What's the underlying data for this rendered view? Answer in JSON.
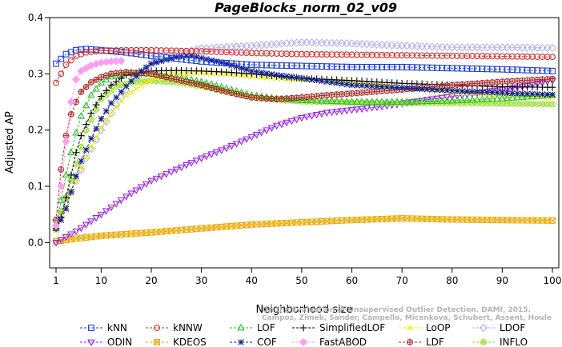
{
  "chart_data": {
    "type": "line",
    "title": "PageBlocks_norm_02_v09",
    "xlabel": "Neighborhood size",
    "ylabel": "Adjusted AP",
    "xlim": [
      1,
      100
    ],
    "ylim": [
      -0.045,
      0.4
    ],
    "xticks": [
      1,
      10,
      20,
      30,
      40,
      50,
      60,
      70,
      80,
      90,
      100
    ],
    "yticks": [
      0.0,
      0.1,
      0.2,
      0.3,
      0.4
    ],
    "xtick_labels": [
      "1",
      "10",
      "20",
      "30",
      "40",
      "50",
      "60",
      "70",
      "80",
      "90",
      "100"
    ],
    "ytick_labels": [
      "0.0",
      "0.1",
      "0.2",
      "0.3",
      "0.4"
    ],
    "grid": false,
    "legend_position": "bottom",
    "citation": [
      "Campos, Zimek, Sander, Campello, Micenkova, Schubert, Assent, Houle",
      "On the Evaluation of Unsupervised Outlier Detection. DAMI, 2015."
    ],
    "series": [
      {
        "name": "kNN",
        "color": "#1f3fd8",
        "marker": "square",
        "points": [
          [
            1,
            0.318
          ],
          [
            3,
            0.335
          ],
          [
            5,
            0.342
          ],
          [
            7,
            0.344
          ],
          [
            10,
            0.342
          ],
          [
            15,
            0.338
          ],
          [
            20,
            0.332
          ],
          [
            30,
            0.322
          ],
          [
            40,
            0.316
          ],
          [
            50,
            0.314
          ],
          [
            60,
            0.312
          ],
          [
            70,
            0.312
          ],
          [
            80,
            0.31
          ],
          [
            90,
            0.308
          ],
          [
            100,
            0.305
          ]
        ]
      },
      {
        "name": "kNNW",
        "color": "#d62a2a",
        "marker": "circle",
        "points": [
          [
            1,
            0.284
          ],
          [
            2,
            0.3
          ],
          [
            3,
            0.316
          ],
          [
            5,
            0.332
          ],
          [
            7,
            0.338
          ],
          [
            10,
            0.341
          ],
          [
            15,
            0.342
          ],
          [
            20,
            0.342
          ],
          [
            30,
            0.34
          ],
          [
            40,
            0.337
          ],
          [
            50,
            0.335
          ],
          [
            60,
            0.334
          ],
          [
            70,
            0.333
          ],
          [
            80,
            0.332
          ],
          [
            90,
            0.331
          ],
          [
            100,
            0.33
          ]
        ]
      },
      {
        "name": "LOF",
        "color": "#28c028",
        "marker": "triangle-up",
        "points": [
          [
            1,
            0.025
          ],
          [
            2,
            0.075
          ],
          [
            3,
            0.12
          ],
          [
            4,
            0.16
          ],
          [
            5,
            0.195
          ],
          [
            6,
            0.225
          ],
          [
            8,
            0.262
          ],
          [
            10,
            0.284
          ],
          [
            12,
            0.295
          ],
          [
            15,
            0.301
          ],
          [
            20,
            0.3
          ],
          [
            25,
            0.294
          ],
          [
            30,
            0.286
          ],
          [
            35,
            0.274
          ],
          [
            40,
            0.262
          ],
          [
            45,
            0.256
          ],
          [
            50,
            0.253
          ],
          [
            60,
            0.25
          ],
          [
            70,
            0.25
          ],
          [
            80,
            0.252
          ],
          [
            90,
            0.256
          ],
          [
            100,
            0.262
          ]
        ]
      },
      {
        "name": "SimplifiedLOF",
        "color": "#000000",
        "marker": "plus",
        "points": [
          [
            1,
            0.025
          ],
          [
            2,
            0.045
          ],
          [
            3,
            0.08
          ],
          [
            4,
            0.12
          ],
          [
            5,
            0.16
          ],
          [
            6,
            0.19
          ],
          [
            8,
            0.23
          ],
          [
            10,
            0.26
          ],
          [
            12,
            0.28
          ],
          [
            15,
            0.298
          ],
          [
            20,
            0.305
          ],
          [
            25,
            0.306
          ],
          [
            30,
            0.305
          ],
          [
            35,
            0.303
          ],
          [
            40,
            0.3
          ],
          [
            45,
            0.296
          ],
          [
            50,
            0.292
          ],
          [
            60,
            0.288
          ],
          [
            70,
            0.283
          ],
          [
            80,
            0.28
          ],
          [
            90,
            0.277
          ],
          [
            100,
            0.276
          ]
        ]
      },
      {
        "name": "LoOP",
        "color": "#eeee00",
        "marker": "x",
        "points": [
          [
            1,
            0.02
          ],
          [
            2,
            0.04
          ],
          [
            3,
            0.062
          ],
          [
            4,
            0.088
          ],
          [
            5,
            0.11
          ],
          [
            6,
            0.134
          ],
          [
            8,
            0.17
          ],
          [
            10,
            0.204
          ],
          [
            12,
            0.23
          ],
          [
            15,
            0.262
          ],
          [
            20,
            0.29
          ],
          [
            25,
            0.3
          ],
          [
            30,
            0.302
          ],
          [
            35,
            0.3
          ],
          [
            40,
            0.296
          ],
          [
            45,
            0.292
          ],
          [
            50,
            0.29
          ],
          [
            60,
            0.285
          ],
          [
            70,
            0.275
          ],
          [
            80,
            0.268
          ],
          [
            90,
            0.262
          ],
          [
            100,
            0.258
          ]
        ]
      },
      {
        "name": "LDOF",
        "color": "#b4b4ec",
        "marker": "diamond",
        "points": [
          [
            1,
            0.04
          ],
          [
            3,
            0.07
          ],
          [
            5,
            0.11
          ],
          [
            7,
            0.15
          ],
          [
            10,
            0.2
          ],
          [
            13,
            0.245
          ],
          [
            16,
            0.285
          ],
          [
            20,
            0.32
          ],
          [
            25,
            0.336
          ],
          [
            30,
            0.345
          ],
          [
            40,
            0.35
          ],
          [
            50,
            0.356
          ],
          [
            60,
            0.354
          ],
          [
            70,
            0.35
          ],
          [
            80,
            0.347
          ],
          [
            90,
            0.347
          ],
          [
            100,
            0.346
          ]
        ]
      },
      {
        "name": "ODIN",
        "color": "#9a22e6",
        "marker": "triangle-down",
        "points": [
          [
            1,
            0.0
          ],
          [
            5,
            0.02
          ],
          [
            10,
            0.05
          ],
          [
            15,
            0.082
          ],
          [
            20,
            0.11
          ],
          [
            25,
            0.13
          ],
          [
            30,
            0.15
          ],
          [
            35,
            0.168
          ],
          [
            40,
            0.188
          ],
          [
            45,
            0.208
          ],
          [
            50,
            0.222
          ],
          [
            55,
            0.231
          ],
          [
            60,
            0.236
          ],
          [
            65,
            0.241
          ],
          [
            70,
            0.247
          ],
          [
            75,
            0.254
          ],
          [
            80,
            0.26
          ],
          [
            85,
            0.266
          ],
          [
            90,
            0.272
          ],
          [
            95,
            0.279
          ],
          [
            100,
            0.288
          ]
        ]
      },
      {
        "name": "KDEOS",
        "color": "#eeaa00",
        "marker": "square-x",
        "points": [
          [
            1,
            0.002
          ],
          [
            5,
            0.007
          ],
          [
            10,
            0.012
          ],
          [
            20,
            0.018
          ],
          [
            30,
            0.025
          ],
          [
            40,
            0.032
          ],
          [
            50,
            0.036
          ],
          [
            60,
            0.04
          ],
          [
            70,
            0.043
          ],
          [
            80,
            0.041
          ],
          [
            90,
            0.04
          ],
          [
            100,
            0.039
          ]
        ]
      },
      {
        "name": "COF",
        "color": "#102090",
        "marker": "asterisk",
        "points": [
          [
            1,
            0.025
          ],
          [
            2,
            0.04
          ],
          [
            3,
            0.06
          ],
          [
            4,
            0.09
          ],
          [
            5,
            0.118
          ],
          [
            6,
            0.145
          ],
          [
            8,
            0.185
          ],
          [
            10,
            0.22
          ],
          [
            12,
            0.248
          ],
          [
            15,
            0.278
          ],
          [
            18,
            0.305
          ],
          [
            20,
            0.318
          ],
          [
            23,
            0.325
          ],
          [
            25,
            0.33
          ],
          [
            28,
            0.332
          ],
          [
            30,
            0.328
          ],
          [
            35,
            0.318
          ],
          [
            40,
            0.305
          ],
          [
            45,
            0.298
          ],
          [
            50,
            0.292
          ],
          [
            55,
            0.286
          ],
          [
            60,
            0.28
          ],
          [
            70,
            0.275
          ],
          [
            80,
            0.27
          ],
          [
            90,
            0.266
          ],
          [
            100,
            0.263
          ]
        ]
      },
      {
        "name": "FastABOD",
        "color": "#ff9ef0",
        "marker": "diamond-filled",
        "points": [
          [
            1,
            0.03
          ],
          [
            2,
            0.1
          ],
          [
            3,
            0.18
          ],
          [
            4,
            0.25
          ],
          [
            5,
            0.29
          ],
          [
            6,
            0.305
          ],
          [
            8,
            0.315
          ],
          [
            10,
            0.32
          ],
          [
            12,
            0.322
          ],
          [
            14,
            0.323
          ]
        ]
      },
      {
        "name": "LDF",
        "color": "#b02828",
        "marker": "circle-plus",
        "points": [
          [
            1,
            0.04
          ],
          [
            2,
            0.13
          ],
          [
            3,
            0.19
          ],
          [
            4,
            0.228
          ],
          [
            5,
            0.25
          ],
          [
            6,
            0.268
          ],
          [
            8,
            0.285
          ],
          [
            10,
            0.294
          ],
          [
            12,
            0.3
          ],
          [
            15,
            0.303
          ],
          [
            20,
            0.3
          ],
          [
            25,
            0.29
          ],
          [
            30,
            0.28
          ],
          [
            35,
            0.268
          ],
          [
            40,
            0.258
          ],
          [
            45,
            0.255
          ],
          [
            50,
            0.258
          ],
          [
            55,
            0.262
          ],
          [
            60,
            0.265
          ],
          [
            70,
            0.272
          ],
          [
            80,
            0.28
          ],
          [
            90,
            0.286
          ],
          [
            100,
            0.291
          ]
        ]
      },
      {
        "name": "INFLO",
        "color": "#9ade2a",
        "marker": "circle-x",
        "points": [
          [
            1,
            0.03
          ],
          [
            3,
            0.08
          ],
          [
            5,
            0.14
          ],
          [
            7,
            0.2
          ],
          [
            10,
            0.255
          ],
          [
            13,
            0.278
          ],
          [
            16,
            0.285
          ],
          [
            20,
            0.288
          ],
          [
            25,
            0.285
          ],
          [
            30,
            0.278
          ],
          [
            35,
            0.268
          ],
          [
            40,
            0.258
          ],
          [
            45,
            0.254
          ],
          [
            50,
            0.251
          ],
          [
            60,
            0.249
          ],
          [
            70,
            0.248
          ],
          [
            80,
            0.248
          ],
          [
            90,
            0.247
          ],
          [
            100,
            0.246
          ]
        ]
      }
    ]
  }
}
